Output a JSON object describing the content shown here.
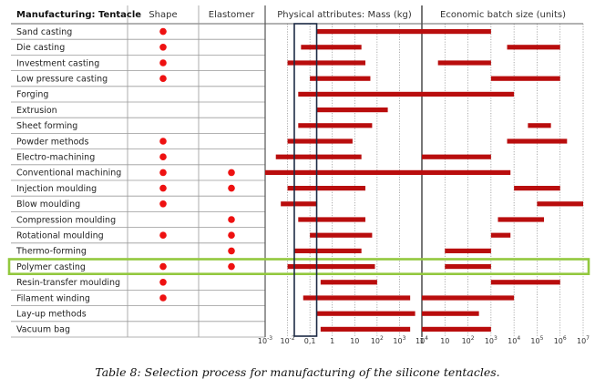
{
  "chart_data": {
    "type": "table",
    "headers": {
      "process": "Manufacturing: Tentacle",
      "shape": "Shape",
      "elastomer": "Elastomer",
      "mass": "Physical attributes: Mass (kg)",
      "batch": "Economic batch size (units)"
    },
    "mass_axis": {
      "scale": "log",
      "range": [
        0.001,
        10000
      ],
      "ticks": [
        {
          "base": "10",
          "exp": "-3"
        },
        {
          "base": "10",
          "exp": "-2"
        },
        {
          "base": "0,1",
          "exp": ""
        },
        {
          "base": "1",
          "exp": ""
        },
        {
          "base": "10",
          "exp": ""
        },
        {
          "base": "10",
          "exp": "2"
        },
        {
          "base": "10",
          "exp": "3"
        },
        {
          "base": "10",
          "exp": "4"
        }
      ],
      "highlight_range": [
        0.02,
        0.2
      ]
    },
    "batch_axis": {
      "scale": "log",
      "range": [
        1,
        10000000
      ],
      "ticks": [
        {
          "base": "1",
          "exp": ""
        },
        {
          "base": "10",
          "exp": ""
        },
        {
          "base": "10",
          "exp": "2"
        },
        {
          "base": "10",
          "exp": "3"
        },
        {
          "base": "10",
          "exp": "4"
        },
        {
          "base": "10",
          "exp": "5"
        },
        {
          "base": "10",
          "exp": "6"
        },
        {
          "base": "10",
          "exp": "7"
        }
      ]
    },
    "rows": [
      {
        "name": "Sand casting",
        "shape": true,
        "elastomer": false,
        "mass": [
          [
            0.2,
            10000
          ]
        ],
        "batch": [
          [
            1,
            1000
          ]
        ]
      },
      {
        "name": "Die casting",
        "shape": true,
        "elastomer": false,
        "mass": [
          [
            0.04,
            20
          ]
        ],
        "batch": [
          [
            5000,
            1000000
          ]
        ]
      },
      {
        "name": "Investment casting",
        "shape": true,
        "elastomer": false,
        "mass": [
          [
            0.01,
            30
          ]
        ],
        "batch": [
          [
            5,
            1000
          ]
        ]
      },
      {
        "name": "Low pressure casting",
        "shape": true,
        "elastomer": false,
        "mass": [
          [
            0.1,
            50
          ]
        ],
        "batch": [
          [
            1000,
            1000000
          ]
        ]
      },
      {
        "name": "Forging",
        "shape": false,
        "elastomer": false,
        "mass": [
          [
            0.03,
            10000
          ]
        ],
        "batch": [
          [
            1,
            10000
          ]
        ]
      },
      {
        "name": "Extrusion",
        "shape": false,
        "elastomer": false,
        "mass": [
          [
            0.2,
            300
          ]
        ],
        "batch": []
      },
      {
        "name": "Sheet forming",
        "shape": false,
        "elastomer": false,
        "mass": [
          [
            0.03,
            60
          ]
        ],
        "batch": [
          [
            40000,
            400000
          ]
        ]
      },
      {
        "name": "Powder methods",
        "shape": true,
        "elastomer": false,
        "mass": [
          [
            0.01,
            8
          ]
        ],
        "batch": [
          [
            5000,
            2000000
          ]
        ]
      },
      {
        "name": "Electro-machining",
        "shape": true,
        "elastomer": false,
        "mass": [
          [
            0.003,
            20
          ]
        ],
        "batch": [
          [
            1,
            1000
          ]
        ]
      },
      {
        "name": "Conventional machining",
        "shape": true,
        "elastomer": true,
        "mass": [
          [
            0.001,
            10000
          ]
        ],
        "batch": [
          [
            1,
            7000
          ]
        ]
      },
      {
        "name": "Injection moulding",
        "shape": true,
        "elastomer": true,
        "mass": [
          [
            0.01,
            30
          ]
        ],
        "batch": [
          [
            10000,
            1000000
          ]
        ]
      },
      {
        "name": "Blow moulding",
        "shape": true,
        "elastomer": false,
        "mass": [
          [
            0.005,
            0.2
          ]
        ],
        "batch": [
          [
            100000,
            10000000
          ]
        ]
      },
      {
        "name": "Compression moulding",
        "shape": false,
        "elastomer": true,
        "mass": [
          [
            0.03,
            30
          ]
        ],
        "batch": [
          [
            2000,
            200000
          ]
        ]
      },
      {
        "name": "Rotational moulding",
        "shape": true,
        "elastomer": true,
        "mass": [
          [
            0.1,
            60
          ]
        ],
        "batch": [
          [
            1000,
            7000
          ]
        ]
      },
      {
        "name": "Thermo-forming",
        "shape": false,
        "elastomer": true,
        "mass": [
          [
            0.02,
            20
          ]
        ],
        "batch": [
          [
            10,
            1000
          ]
        ]
      },
      {
        "name": "Polymer casting",
        "shape": true,
        "elastomer": true,
        "mass": [
          [
            0.01,
            80
          ]
        ],
        "batch": [
          [
            10,
            1000
          ]
        ],
        "highlight": true
      },
      {
        "name": "Resin-transfer moulding",
        "shape": true,
        "elastomer": false,
        "mass": [
          [
            0.3,
            100
          ]
        ],
        "batch": [
          [
            1000,
            1000000
          ]
        ]
      },
      {
        "name": "Filament winding",
        "shape": true,
        "elastomer": false,
        "mass": [
          [
            0.05,
            3000
          ]
        ],
        "batch": [
          [
            1,
            10000
          ]
        ]
      },
      {
        "name": "Lay-up methods",
        "shape": false,
        "elastomer": false,
        "mass": [
          [
            0.2,
            5000
          ]
        ],
        "batch": [
          [
            1,
            300
          ]
        ]
      },
      {
        "name": "Vacuum bag",
        "shape": false,
        "elastomer": false,
        "mass": [
          [
            0.3,
            3000
          ]
        ],
        "batch": [
          [
            1,
            1000
          ]
        ]
      }
    ],
    "colors": {
      "bar": "#b90d0d",
      "dot": "#ee1111",
      "highlight": "#92c83e",
      "grid": "#8a8a8a",
      "divider": "#555555",
      "mass_box": "#1c2a44"
    }
  },
  "caption": "Table 8: Selection process for manufacturing of the silicone tentacles."
}
